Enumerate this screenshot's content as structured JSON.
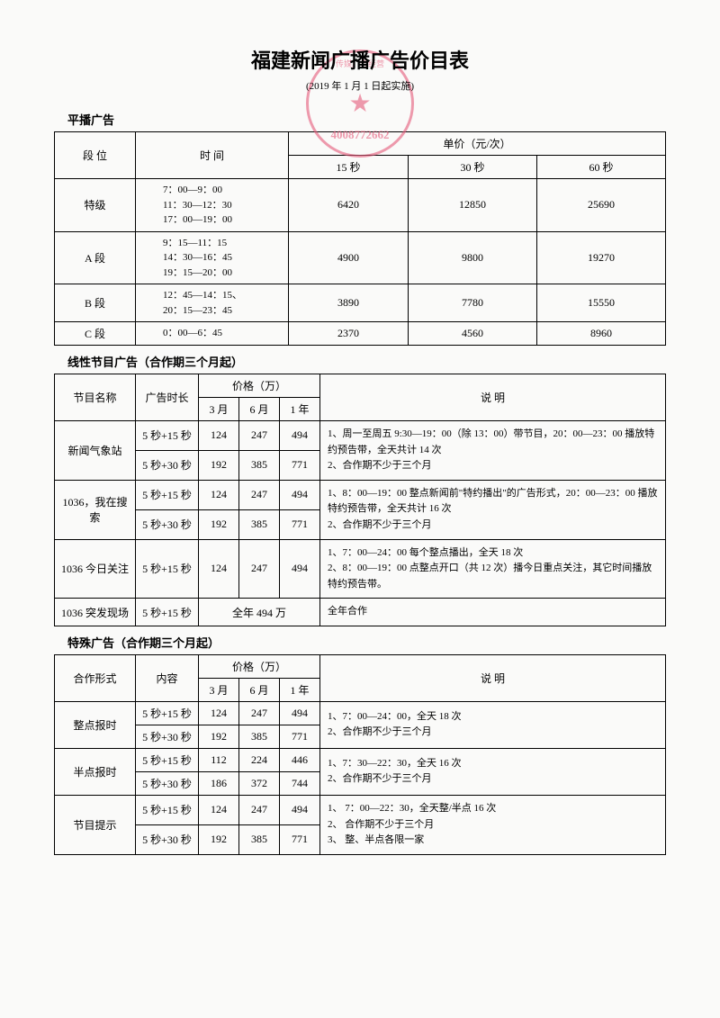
{
  "title": "福建新闻广播广告价目表",
  "subtitle": "(2019 年 1 月 1 日起实施)",
  "stamp": {
    "text": "传媒广告经营",
    "phone": "4008772662"
  },
  "table1": {
    "label": "平播广告",
    "headers": {
      "slot": "段  位",
      "time": "时  间",
      "price": "单价（元/次）",
      "s15": "15 秒",
      "s30": "30 秒",
      "s60": "60 秒"
    },
    "rows": [
      {
        "slot": "特级",
        "time": "7：00—9：00\n11：30—12：30\n17：00—19：00",
        "p15": "6420",
        "p30": "12850",
        "p60": "25690"
      },
      {
        "slot": "A 段",
        "time": "9：15—11：15\n14：30—16：45\n19：15—20：00",
        "p15": "4900",
        "p30": "9800",
        "p60": "19270"
      },
      {
        "slot": "B 段",
        "time": "12：45—14：15、\n20：15—23：45",
        "p15": "3890",
        "p30": "7780",
        "p60": "15550"
      },
      {
        "slot": "C 段",
        "time": "0：00—6：45",
        "p15": "2370",
        "p30": "4560",
        "p60": "8960"
      }
    ]
  },
  "table2": {
    "label": "线性节目广告（合作期三个月起）",
    "headers": {
      "name": "节目名称",
      "duration": "广告时长",
      "price": "价格（万）",
      "m3": "3 月",
      "m6": "6 月",
      "y1": "1 年",
      "desc": "说  明"
    },
    "rows": [
      {
        "name": "新闻气象站",
        "dur": "5 秒+15 秒",
        "m3": "124",
        "m6": "247",
        "y1": "494",
        "desc": "1、周一至周五 9:30—19：00（除 13：00）带节目，20：00—23：00 播放特约预告带，全天共计 14 次\n2、合作期不少于三个月",
        "span": 2
      },
      {
        "name": "",
        "dur": "5 秒+30 秒",
        "m3": "192",
        "m6": "385",
        "y1": "771",
        "desc": ""
      },
      {
        "name": "1036，我在搜索",
        "dur": "5 秒+15 秒",
        "m3": "124",
        "m6": "247",
        "y1": "494",
        "desc": "1、8：00—19：00 整点新闻前\"特约播出\"的广告形式，20：00—23：00 播放特约预告带，全天共计 16 次\n2、合作期不少于三个月",
        "span": 2
      },
      {
        "name": "",
        "dur": "5 秒+30 秒",
        "m3": "192",
        "m6": "385",
        "y1": "771",
        "desc": ""
      },
      {
        "name": "1036 今日关注",
        "dur": "5 秒+15 秒",
        "m3": "124",
        "m6": "247",
        "y1": "494",
        "desc": "1、7：00—24：00 每个整点播出，全天 18 次\n2、8：00—19：00 点整点开口（共 12 次）播今日重点关注，其它时间播放特约预告带。",
        "span": 1
      },
      {
        "name": "1036 突发现场",
        "dur": "5 秒+15 秒",
        "full": "全年 494 万",
        "desc": "全年合作",
        "span": 1
      }
    ]
  },
  "table3": {
    "label": "特殊广告（合作期三个月起）",
    "headers": {
      "form": "合作形式",
      "content": "内容",
      "price": "价格（万）",
      "m3": "3 月",
      "m6": "6 月",
      "y1": "1 年",
      "desc": "说  明"
    },
    "rows": [
      {
        "form": "整点报时",
        "dur": "5 秒+15 秒",
        "m3": "124",
        "m6": "247",
        "y1": "494",
        "desc": "1、7：00—24：00，全天 18 次\n2、合作期不少于三个月",
        "span": 2
      },
      {
        "form": "",
        "dur": "5 秒+30 秒",
        "m3": "192",
        "m6": "385",
        "y1": "771",
        "desc": ""
      },
      {
        "form": "半点报时",
        "dur": "5 秒+15 秒",
        "m3": "112",
        "m6": "224",
        "y1": "446",
        "desc": "1、7：30—22：30，全天 16 次\n2、合作期不少于三个月",
        "span": 2
      },
      {
        "form": "",
        "dur": "5 秒+30 秒",
        "m3": "186",
        "m6": "372",
        "y1": "744",
        "desc": ""
      },
      {
        "form": "节目提示",
        "dur": "5 秒+15 秒",
        "m3": "124",
        "m6": "247",
        "y1": "494",
        "desc": "1、 7：00—22：30，全天整/半点 16 次\n2、 合作期不少于三个月\n3、 整、半点各限一家",
        "span": 2
      },
      {
        "form": "",
        "dur": "5 秒+30 秒",
        "m3": "192",
        "m6": "385",
        "y1": "771",
        "desc": ""
      }
    ]
  }
}
